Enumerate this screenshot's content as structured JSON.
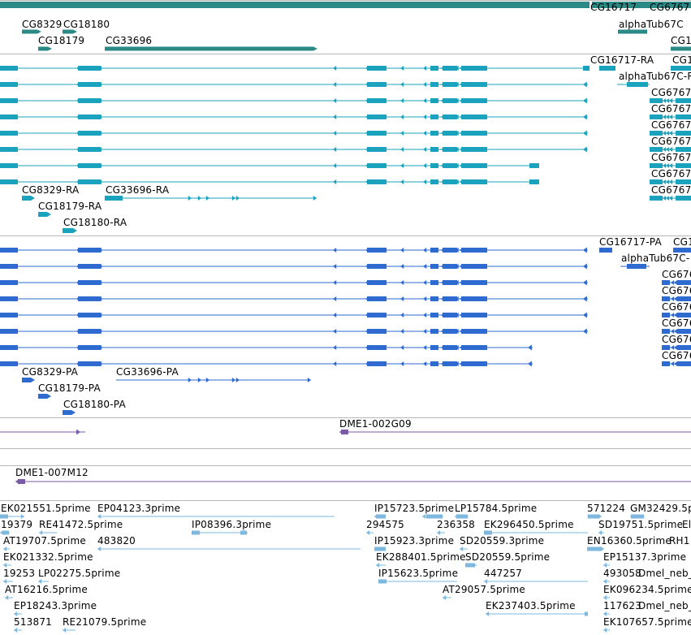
{
  "colors": {
    "gene": "#2c8a86",
    "transcript": "#1ba3bd",
    "protein": "#2f6ad0",
    "clone": "#7b5aa6",
    "est": "#7eb8df",
    "separator": "#b8b8b8",
    "label": "#000000"
  },
  "tracks": {
    "genes": {
      "labels": [
        "CG16717",
        "CG6767",
        "CG8329",
        "CG18180",
        "CG18179",
        "CG33696",
        "alphaTub67C",
        "CG1"
      ]
    },
    "transcripts": {
      "labels": [
        "CG16717-RA",
        "CG1",
        "alphaTub67C-R",
        "CG6767-",
        "CG6767-",
        "CG6767-",
        "CG6767-",
        "CG6767-",
        "CG6767-",
        "CG6767-",
        "CG8329-RA",
        "CG33696-RA",
        "CG18179-RA",
        "CG18180-RA"
      ]
    },
    "proteins": {
      "labels": [
        "CG16717-PA",
        "CG1",
        "alphaTub67C-",
        "CG676",
        "CG676",
        "CG676",
        "CG676",
        "CG676",
        "CG676",
        "CG8329-PA",
        "CG33696-PA",
        "CG18179-PA",
        "CG18180-PA"
      ]
    },
    "clones_a": {
      "labels": [
        "DME1-002G09"
      ]
    },
    "clones_b": {
      "labels": [
        "DME1-007M12"
      ]
    },
    "ests": {
      "labels": [
        "EK021551.5prime",
        "EP04123.3prime",
        "IP15723.5prime",
        "LP15784.5prime",
        "571224",
        "GM32429.5p",
        "19379",
        "RE41472.5prime",
        "IP08396.3prime",
        "294575",
        "236358",
        "EK296450.5prime",
        "SD19751.5prime",
        "El",
        "AT19707.5prime",
        "483820",
        "IP15923.3prime",
        "SD20559.3prime",
        "EN16360.5prime",
        "RH1",
        "EK021332.5prime",
        "EK288401.5prime",
        "SD20559.5prime",
        "EP15137.3prime",
        "19253",
        "LP02275.5prime",
        "IP15623.5prime",
        "447257",
        "493058",
        "Dmel_neb_",
        "AT16216.5prime",
        "AT29057.5prime",
        "EK096234.5prime",
        "EP18243.3prime",
        "EK237403.5prime",
        "117623",
        "Dmel_neb_",
        "513871",
        "RE21079.5prime",
        "EK107657.5prime"
      ]
    }
  }
}
